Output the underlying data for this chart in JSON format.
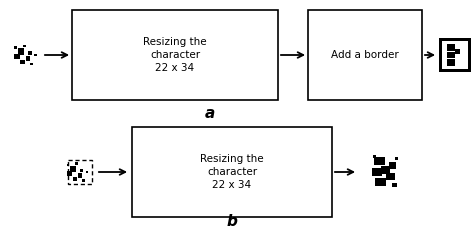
{
  "bg_color": "#ffffff",
  "fig_width": 4.74,
  "fig_height": 2.4,
  "dpi": 100,
  "label_a": "a",
  "label_b": "b",
  "box_a1_text": "Resizing the\ncharacter\n22 x 34",
  "box_a2_text": "Add a border",
  "box_b1_text": "Resizing the\ncharacter\n22 x 34",
  "box_edge_color": "#000000",
  "box_face_color": "#ffffff",
  "arrow_color": "#000000",
  "text_color": "#000000",
  "font_size": 7.5,
  "label_font_size": 11
}
